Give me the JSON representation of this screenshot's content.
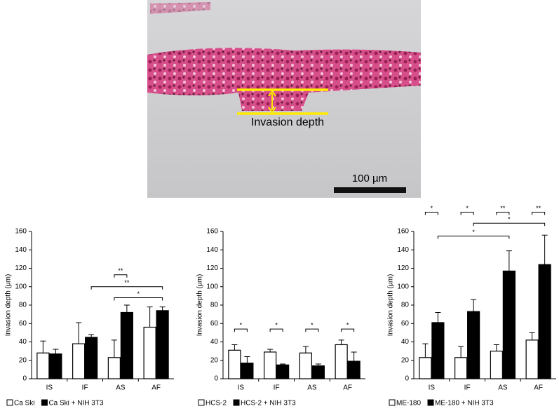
{
  "image": {
    "annotation": "Invasion depth",
    "scale_bar": "100 µm"
  },
  "chart_data": [
    {
      "type": "bar",
      "ylabel": "Invasion depth (µm)",
      "categories": [
        "IS",
        "IF",
        "AS",
        "AF"
      ],
      "series": [
        {
          "name": "Ca Ski",
          "color": "#ffffff",
          "values": [
            28,
            38,
            23,
            56
          ],
          "errors": [
            13,
            23,
            19,
            22
          ]
        },
        {
          "name": "Ca Ski + NIH 3T3",
          "color": "#000000",
          "values": [
            27,
            45,
            72,
            74
          ],
          "errors": [
            5,
            3,
            8,
            4
          ]
        }
      ],
      "ylim": [
        0,
        160
      ],
      "yticks": [
        0,
        20,
        40,
        60,
        80,
        100,
        120,
        140,
        160
      ],
      "significance": [
        {
          "label": "**",
          "y": 113,
          "from": [
            2,
            0
          ],
          "to": [
            2,
            1
          ]
        },
        {
          "label": "**",
          "y": 100,
          "from": [
            1,
            1
          ],
          "to": [
            3,
            1
          ]
        },
        {
          "label": "*",
          "y": 88,
          "from": [
            2,
            0
          ],
          "to": [
            3,
            1
          ]
        }
      ]
    },
    {
      "type": "bar",
      "ylabel": "Invasion depth (µm)",
      "categories": [
        "IS",
        "IF",
        "AS",
        "AF"
      ],
      "series": [
        {
          "name": "HCS-2",
          "color": "#ffffff",
          "values": [
            31,
            29,
            28,
            37
          ],
          "errors": [
            6,
            3,
            7,
            5
          ]
        },
        {
          "name": "HCS-2 + NIH 3T3",
          "color": "#000000",
          "values": [
            17,
            15,
            14,
            19
          ],
          "errors": [
            7,
            1,
            2,
            10
          ]
        }
      ],
      "ylim": [
        0,
        160
      ],
      "yticks": [
        0,
        20,
        40,
        60,
        80,
        100,
        120,
        140,
        160
      ],
      "significance": [
        {
          "label": "*",
          "y": 54,
          "from": [
            0,
            0
          ],
          "to": [
            0,
            1
          ]
        },
        {
          "label": "*",
          "y": 54,
          "from": [
            1,
            0
          ],
          "to": [
            1,
            1
          ]
        },
        {
          "label": "*",
          "y": 54,
          "from": [
            2,
            0
          ],
          "to": [
            2,
            1
          ]
        },
        {
          "label": "*",
          "y": 54,
          "from": [
            3,
            0
          ],
          "to": [
            3,
            1
          ]
        }
      ]
    },
    {
      "type": "bar",
      "ylabel": "Invasion depth (µm)",
      "categories": [
        "IS",
        "IF",
        "AS",
        "AF"
      ],
      "series": [
        {
          "name": "ME-180",
          "color": "#ffffff",
          "values": [
            23,
            23,
            30,
            42
          ],
          "errors": [
            15,
            12,
            7,
            8
          ]
        },
        {
          "name": "ME-180 + NIH 3T3",
          "color": "#000000",
          "values": [
            61,
            73,
            117,
            124
          ],
          "errors": [
            11,
            13,
            22,
            32
          ]
        }
      ],
      "ylim": [
        0,
        160
      ],
      "yticks": [
        0,
        20,
        40,
        60,
        80,
        100,
        120,
        140,
        160
      ],
      "significance": [
        {
          "label": "*",
          "y": 181,
          "from": [
            0,
            0
          ],
          "to": [
            0,
            1
          ]
        },
        {
          "label": "*",
          "y": 181,
          "from": [
            1,
            0
          ],
          "to": [
            1,
            1
          ]
        },
        {
          "label": "**",
          "y": 181,
          "from": [
            2,
            0
          ],
          "to": [
            2,
            1
          ]
        },
        {
          "label": "**",
          "y": 181,
          "from": [
            3,
            0
          ],
          "to": [
            3,
            1
          ]
        },
        {
          "label": "*",
          "y": 169,
          "from": [
            1,
            1
          ],
          "to": [
            3,
            1
          ]
        },
        {
          "label": "*",
          "y": 155,
          "from": [
            0,
            1
          ],
          "to": [
            2,
            1
          ]
        }
      ]
    }
  ]
}
